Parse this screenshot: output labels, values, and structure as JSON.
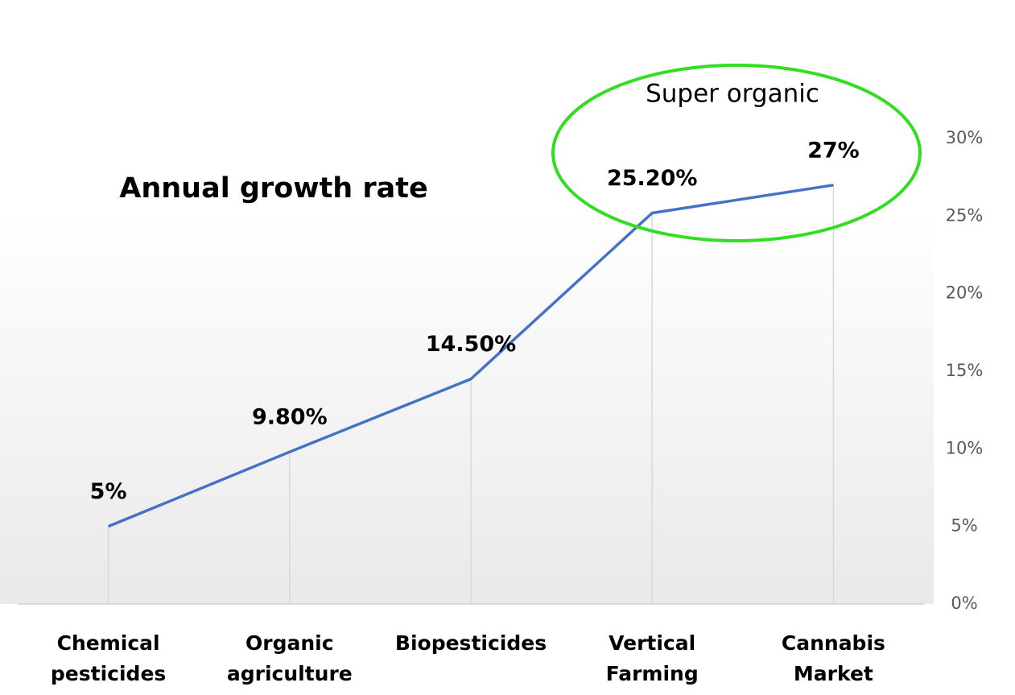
{
  "chart_data": {
    "type": "line",
    "title": "Annual growth rate",
    "annotation": "Super organic",
    "categories": [
      "Chemical\npesticides",
      "Organic\nagriculture",
      "Biopesticides",
      "Vertical\nFarming",
      "Cannabis\nMarket"
    ],
    "values": [
      5,
      9.8,
      14.5,
      25.2,
      27
    ],
    "value_labels": [
      "5%",
      "9.80%",
      "14.50%",
      "25.20%",
      "27%"
    ],
    "color": "#4472c4",
    "annotation_color": "#33dd22",
    "ylim": [
      0,
      30
    ],
    "yticks": [
      {
        "value": 0,
        "label": "0%"
      },
      {
        "value": 5,
        "label": "5%"
      },
      {
        "value": 10,
        "label": "10%"
      },
      {
        "value": 15,
        "label": "15%"
      },
      {
        "value": 20,
        "label": "20%"
      },
      {
        "value": 25,
        "label": "25%"
      },
      {
        "value": 30,
        "label": "30%"
      }
    ],
    "y_axis_side": "right"
  }
}
